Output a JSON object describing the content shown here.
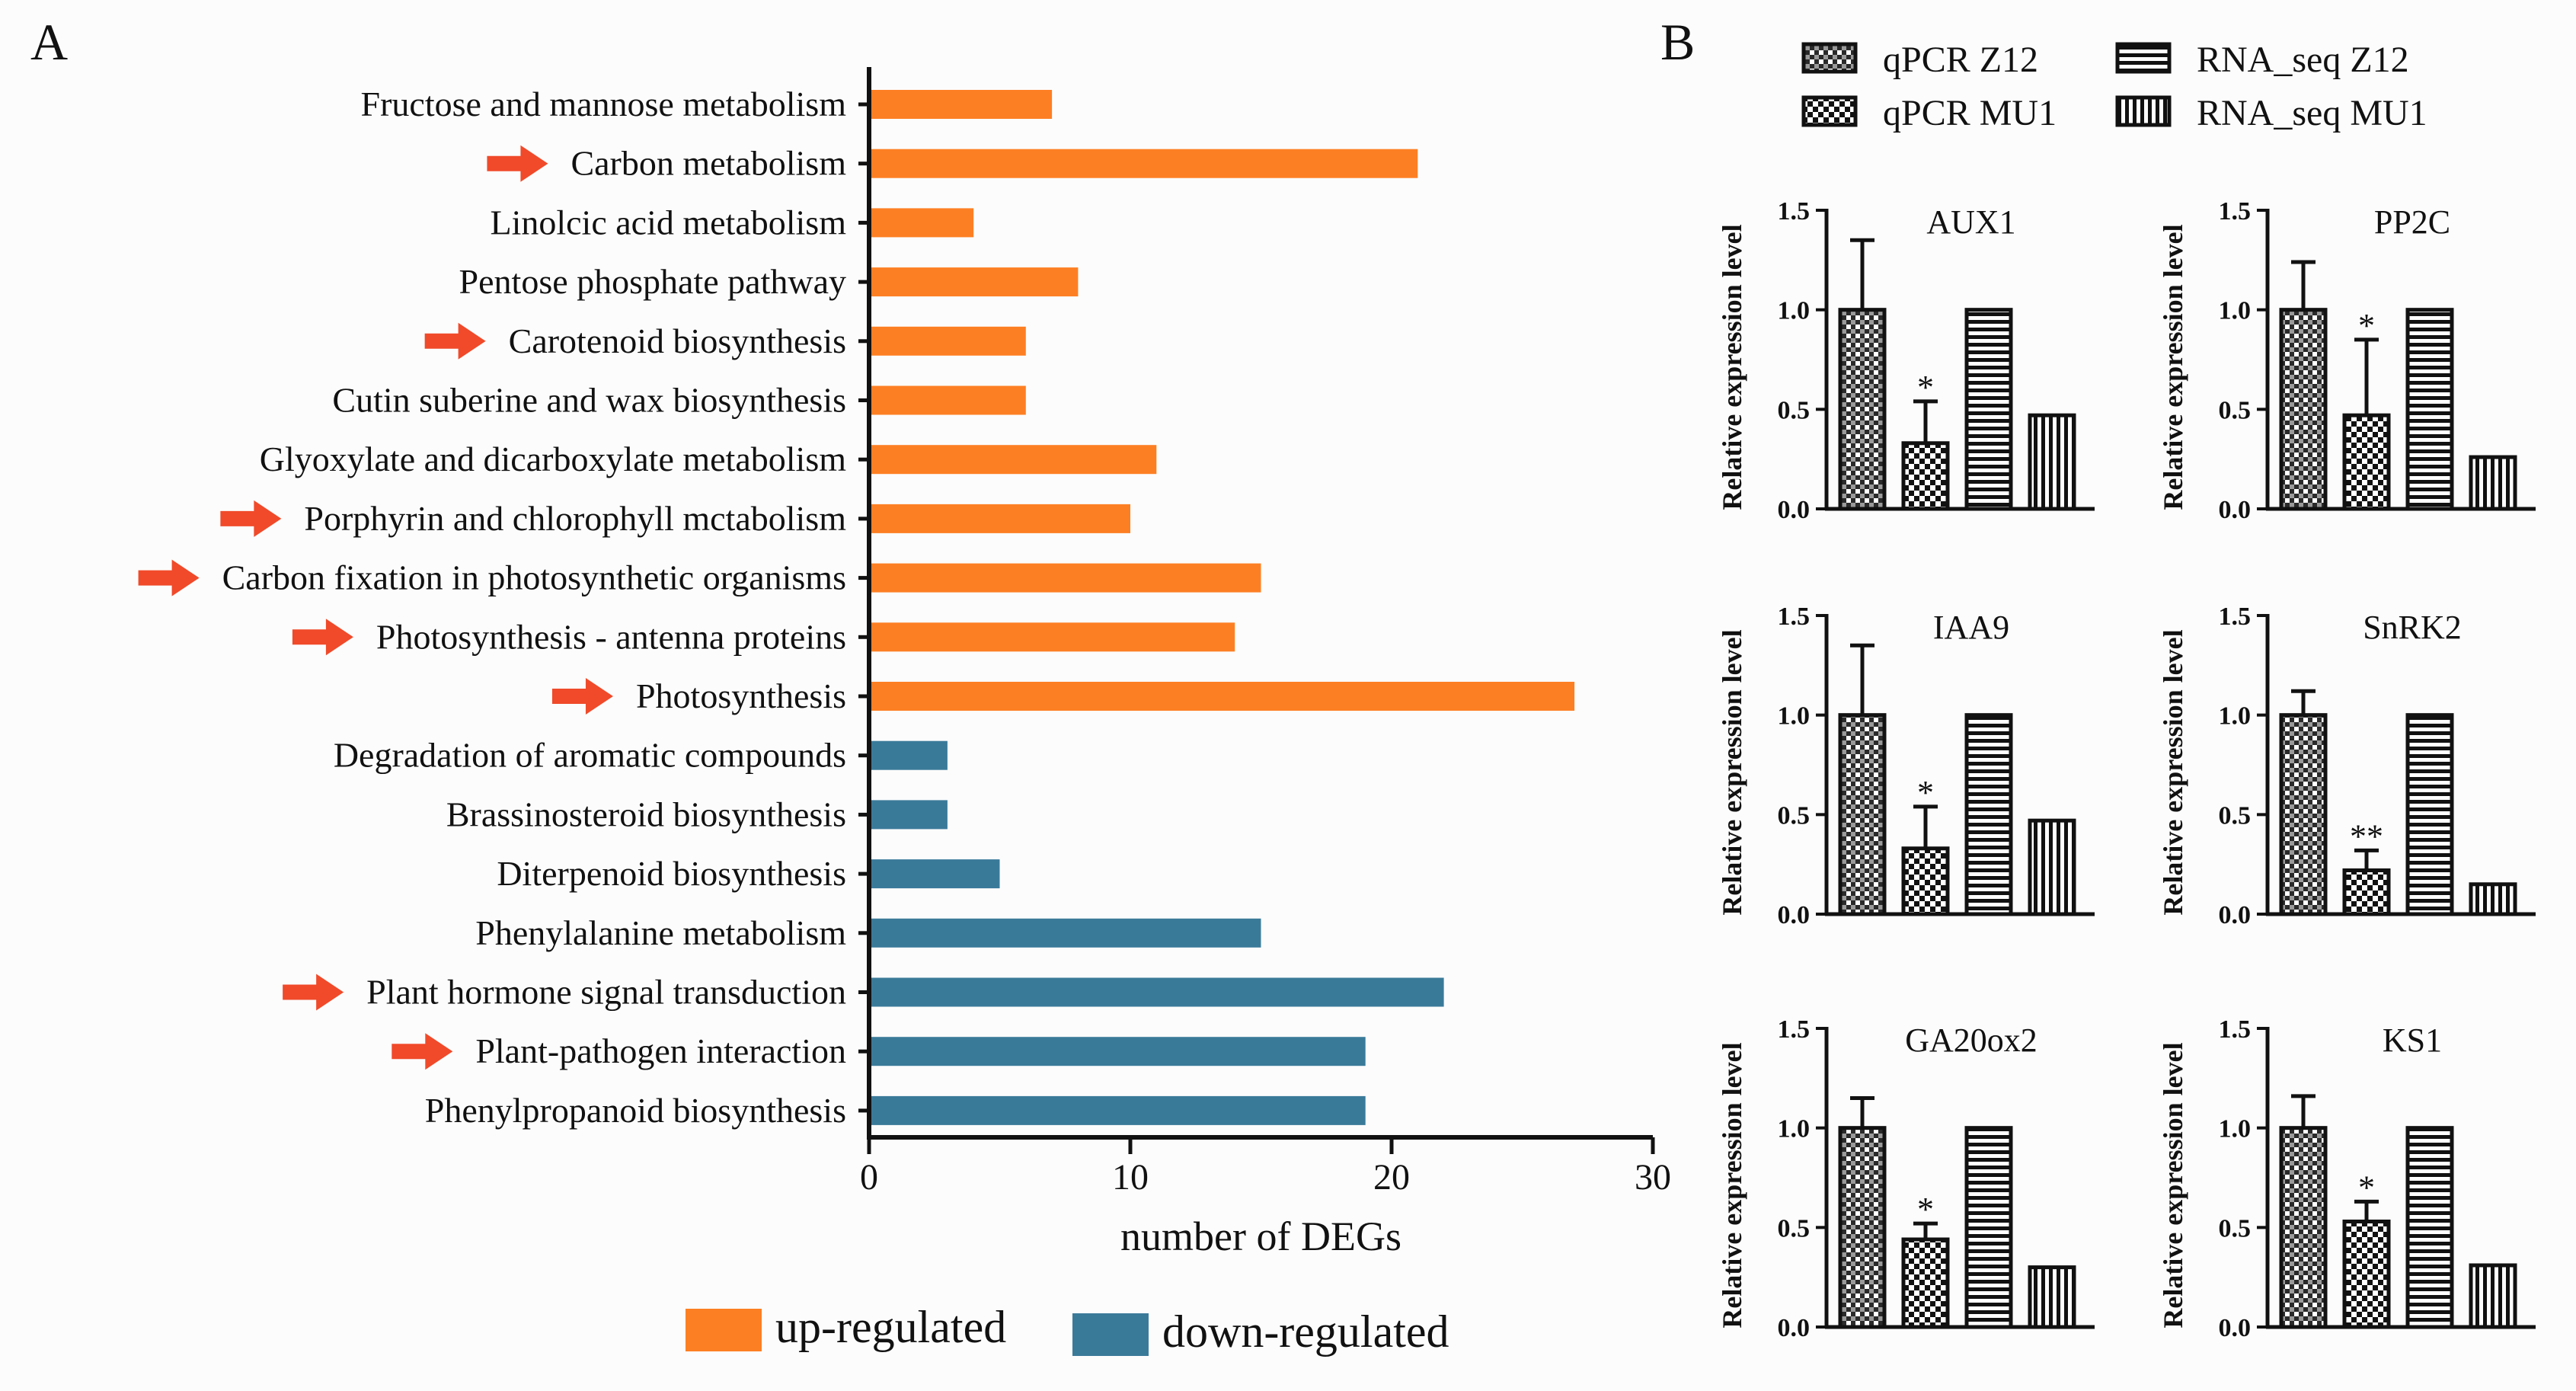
{
  "chart_data": [
    {
      "panel": "A",
      "type": "bar",
      "orientation": "horizontal",
      "title": "",
      "xlabel": "number of DEGs",
      "ylabel": "",
      "xlim": [
        0,
        30
      ],
      "xticks": [
        0,
        10,
        20,
        30
      ],
      "grid": false,
      "legend": {
        "placement": "bottom-center",
        "entries": [
          {
            "label": "up-regulated",
            "color": "#fd7f23"
          },
          {
            "label": "down-regulated",
            "color": "#3a7a99"
          }
        ]
      },
      "bars": [
        {
          "label": "Fructose and mannose metabolism",
          "value": 7,
          "regulation": "up",
          "arrow": false
        },
        {
          "label": "Carbon metabolism",
          "value": 21,
          "regulation": "up",
          "arrow": true
        },
        {
          "label": "Linolcic acid metabolism",
          "value": 4,
          "regulation": "up",
          "arrow": false
        },
        {
          "label": "Pentose phosphate pathway",
          "value": 8,
          "regulation": "up",
          "arrow": false
        },
        {
          "label": "Carotenoid biosynthesis",
          "value": 6,
          "regulation": "up",
          "arrow": true
        },
        {
          "label": "Cutin suberine and wax biosynthesis",
          "value": 6,
          "regulation": "up",
          "arrow": false
        },
        {
          "label": "Glyoxylate and dicarboxylate metabolism",
          "value": 11,
          "regulation": "up",
          "arrow": false
        },
        {
          "label": "Porphyrin and chlorophyll mctabolism",
          "value": 10,
          "regulation": "up",
          "arrow": true
        },
        {
          "label": "Carbon fixation in photosynthetic organisms",
          "value": 15,
          "regulation": "up",
          "arrow": true
        },
        {
          "label": "Photosynthesis - antenna proteins",
          "value": 14,
          "regulation": "up",
          "arrow": true
        },
        {
          "label": "Photosynthesis",
          "value": 27,
          "regulation": "up",
          "arrow": true
        },
        {
          "label": "Degradation of aromatic compounds",
          "value": 3,
          "regulation": "down",
          "arrow": false
        },
        {
          "label": "Brassinosteroid biosynthesis",
          "value": 3,
          "regulation": "down",
          "arrow": false
        },
        {
          "label": "Diterpenoid biosynthesis",
          "value": 5,
          "regulation": "down",
          "arrow": false
        },
        {
          "label": "Phenylalanine metabolism",
          "value": 15,
          "regulation": "down",
          "arrow": false
        },
        {
          "label": "Plant hormone signal transduction",
          "value": 22,
          "regulation": "down",
          "arrow": true
        },
        {
          "label": "Plant-pathogen interaction",
          "value": 19,
          "regulation": "down",
          "arrow": true
        },
        {
          "label": "Phenylpropanoid biosynthesis",
          "value": 19,
          "regulation": "down",
          "arrow": false
        }
      ],
      "colors": {
        "up": "#fd7f23",
        "down": "#3a7a99",
        "arrow": "#f04a2a"
      }
    },
    {
      "panel": "B",
      "type": "bar",
      "ylabel": "Relative expression level",
      "ylim": [
        0,
        1.5
      ],
      "yticks": [
        "0.0",
        "0.5",
        "1.0",
        "1.5"
      ],
      "grid": false,
      "legend": {
        "placement": "top",
        "entries": [
          "qPCR Z12",
          "qPCR MU1",
          "RNA_seq Z12",
          "RNA_seq MU1"
        ]
      },
      "categories": [
        "qPCR Z12",
        "qPCR MU1",
        "RNA_seq Z12",
        "RNA_seq MU1"
      ],
      "charts": [
        {
          "title": "AUX1",
          "values": [
            1.0,
            0.33,
            1.0,
            0.47
          ],
          "errors": [
            0.35,
            0.21,
            null,
            null
          ],
          "significance": "*"
        },
        {
          "title": "PP2C",
          "values": [
            1.0,
            0.47,
            1.0,
            0.26
          ],
          "errors": [
            0.24,
            0.38,
            null,
            null
          ],
          "significance": "*"
        },
        {
          "title": "IAA9",
          "values": [
            1.0,
            0.33,
            1.0,
            0.47
          ],
          "errors": [
            0.35,
            0.21,
            null,
            null
          ],
          "significance": "*"
        },
        {
          "title": "SnRK2",
          "values": [
            1.0,
            0.22,
            1.0,
            0.15
          ],
          "errors": [
            0.12,
            0.1,
            null,
            null
          ],
          "significance": "**"
        },
        {
          "title": "GA20ox2",
          "values": [
            1.0,
            0.44,
            1.0,
            0.3
          ],
          "errors": [
            0.15,
            0.08,
            null,
            null
          ],
          "significance": "*"
        },
        {
          "title": "KS1",
          "values": [
            1.0,
            0.53,
            1.0,
            0.31
          ],
          "errors": [
            0.16,
            0.1,
            null,
            null
          ],
          "significance": "*"
        }
      ]
    }
  ],
  "panel_labels": {
    "a": "A",
    "b": "B"
  }
}
